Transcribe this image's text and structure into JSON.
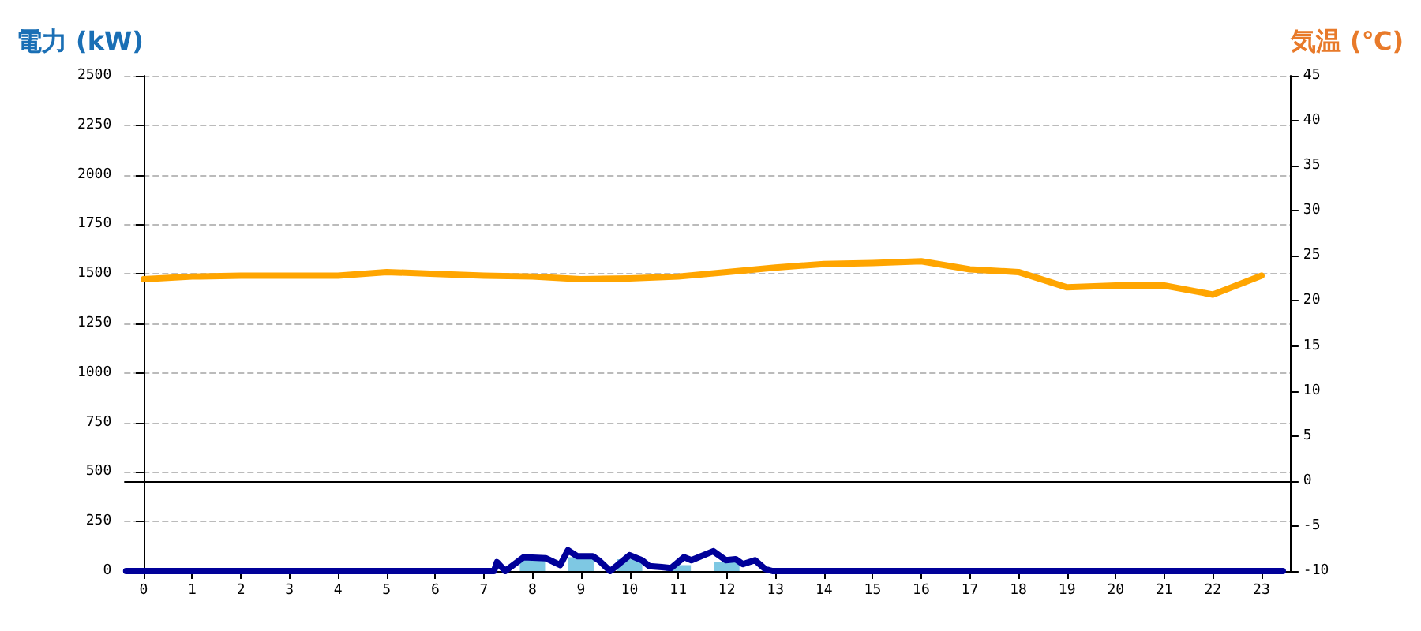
{
  "chart_data": {
    "type": "bar",
    "ylabel": "電力 (kW)",
    "y2label": "気温 (℃)",
    "x": [
      0,
      1,
      2,
      3,
      4,
      5,
      6,
      7,
      8,
      9,
      10,
      11,
      12,
      13,
      14,
      15,
      16,
      17,
      18,
      19,
      20,
      21,
      22,
      23
    ],
    "series": [
      {
        "color": "#7ec8e3",
        "values": [
          0,
          0,
          0,
          0,
          0,
          0,
          0,
          0,
          65,
          70,
          60,
          30,
          45,
          0,
          0,
          0,
          0,
          0,
          0,
          0,
          0,
          0,
          0,
          0
        ]
      },
      {
        "type": "line",
        "color": "#000099",
        "x": [
          -0.36,
          7.21,
          7.27,
          7.44,
          7.82,
          8.27,
          8.57,
          8.73,
          8.92,
          9.24,
          9.36,
          9.6,
          10.0,
          10.25,
          10.4,
          10.66,
          10.85,
          11.12,
          11.27,
          11.72,
          11.98,
          12.18,
          12.33,
          12.58,
          12.79,
          12.94,
          23.44
        ],
        "values": [
          0,
          0,
          45,
          0,
          70,
          65,
          30,
          105,
          75,
          75,
          55,
          0,
          80,
          55,
          25,
          20,
          15,
          70,
          55,
          100,
          55,
          60,
          35,
          55,
          10,
          0,
          0
        ]
      },
      {
        "type": "line",
        "axis": "y2",
        "color": "#ffa500",
        "values": [
          22.4,
          22.7,
          22.8,
          22.8,
          22.8,
          23.2,
          23,
          22.8,
          22.7,
          22.4,
          22.5,
          22.7,
          23.2,
          23.7,
          24.1,
          24.2,
          24.4,
          23.5,
          23.2,
          21.5,
          21.7,
          21.7,
          20.7,
          22.8
        ]
      }
    ],
    "xlim": [
      -0.4,
      23.6
    ],
    "xticks": [
      0,
      1,
      2,
      3,
      4,
      5,
      6,
      7,
      8,
      9,
      10,
      11,
      12,
      13,
      14,
      15,
      16,
      17,
      18,
      19,
      20,
      21,
      22,
      23
    ],
    "ylim": [
      0,
      2500
    ],
    "yticks": [
      0,
      250,
      500,
      750,
      1000,
      1250,
      1500,
      1750,
      2000,
      2250,
      2500
    ],
    "y2lim": [
      -10,
      45
    ],
    "y2ticks": [
      -10,
      -5,
      0,
      5,
      10,
      15,
      20,
      25,
      30,
      35,
      40,
      45
    ],
    "ref_lines": [
      {
        "axis": "y2",
        "value": 0,
        "color": "#000000"
      }
    ],
    "grid": "y",
    "line_style": "solid",
    "marker": "none"
  }
}
